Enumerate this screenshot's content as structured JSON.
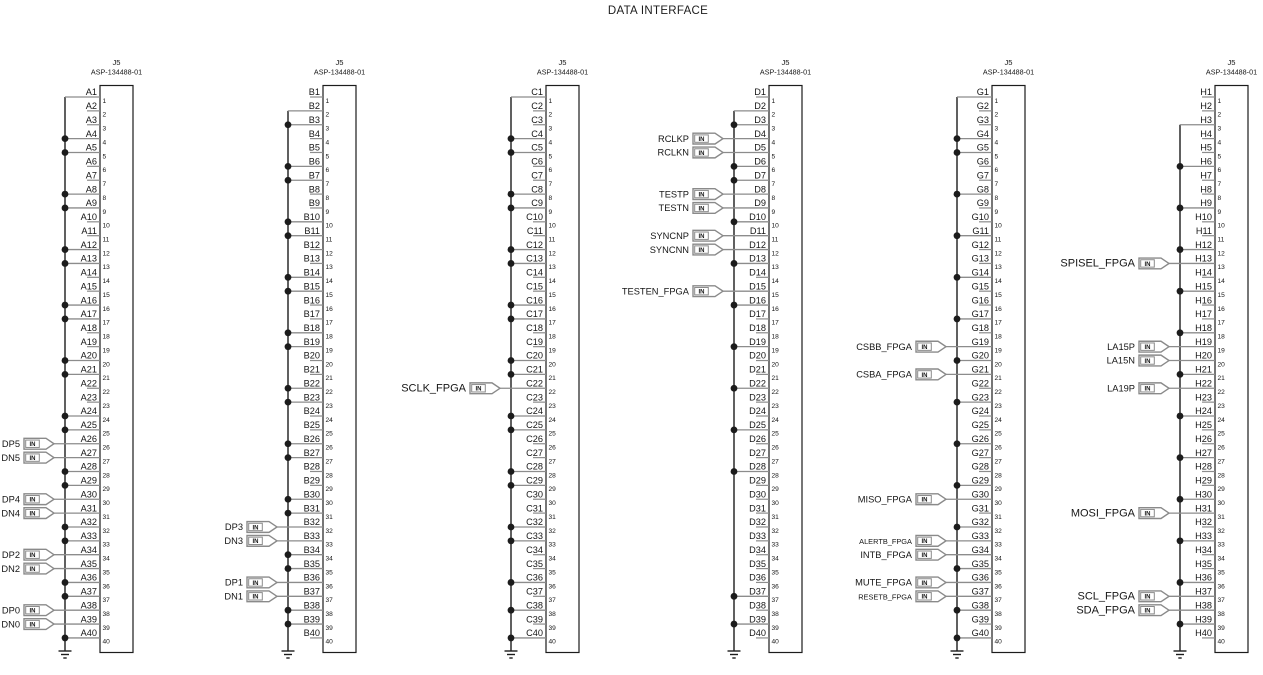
{
  "title": "DATA INTERFACE",
  "colors": {
    "wire": "#8c8c8c",
    "ink": "#1c1c1c",
    "bus": "#2b2b2b",
    "port_outline": "#8a8a8a"
  },
  "connector": {
    "ref": "J5",
    "part": "ASP-134488-01",
    "pins": 40
  },
  "columns": [
    {
      "prefix": "A",
      "bus_top_pin": 1,
      "grounded_pins": [
        4,
        5,
        8,
        9,
        12,
        13,
        16,
        17,
        20,
        21,
        24,
        25,
        28,
        29,
        32,
        33,
        36,
        37,
        40
      ],
      "signals": [
        {
          "pin": 26,
          "name": "DP5",
          "size": "m"
        },
        {
          "pin": 27,
          "name": "DN5",
          "size": "m"
        },
        {
          "pin": 30,
          "name": "DP4",
          "size": "m"
        },
        {
          "pin": 31,
          "name": "DN4",
          "size": "m"
        },
        {
          "pin": 34,
          "name": "DP2",
          "size": "m"
        },
        {
          "pin": 35,
          "name": "DN2",
          "size": "m"
        },
        {
          "pin": 38,
          "name": "DP0",
          "size": "m"
        },
        {
          "pin": 39,
          "name": "DN0",
          "size": "m"
        }
      ]
    },
    {
      "prefix": "B",
      "bus_top_pin": 2,
      "grounded_pins": [
        3,
        6,
        7,
        10,
        11,
        14,
        15,
        18,
        19,
        22,
        23,
        26,
        27,
        30,
        31,
        34,
        35,
        38,
        39
      ],
      "signals": [
        {
          "pin": 32,
          "name": "DP3",
          "size": "m"
        },
        {
          "pin": 33,
          "name": "DN3",
          "size": "m"
        },
        {
          "pin": 36,
          "name": "DP1",
          "size": "m"
        },
        {
          "pin": 37,
          "name": "DN1",
          "size": "m"
        }
      ]
    },
    {
      "prefix": "C",
      "bus_top_pin": 1,
      "grounded_pins": [
        4,
        5,
        8,
        9,
        12,
        13,
        16,
        17,
        20,
        21,
        24,
        25,
        28,
        29,
        32,
        33,
        36,
        38,
        40
      ],
      "signals": [
        {
          "pin": 22,
          "name": "SCLK_FPGA",
          "size": "l"
        }
      ]
    },
    {
      "prefix": "D",
      "bus_top_pin": 2,
      "grounded_pins": [
        3,
        6,
        7,
        10,
        13,
        16,
        19,
        22,
        25,
        28,
        37,
        39
      ],
      "signals": [
        {
          "pin": 4,
          "name": "RCLKP",
          "size": "m"
        },
        {
          "pin": 5,
          "name": "RCLKN",
          "size": "m"
        },
        {
          "pin": 8,
          "name": "TESTP",
          "size": "m"
        },
        {
          "pin": 9,
          "name": "TESTN",
          "size": "m"
        },
        {
          "pin": 11,
          "name": "SYNCNP",
          "size": "m"
        },
        {
          "pin": 12,
          "name": "SYNCNN",
          "size": "m"
        },
        {
          "pin": 15,
          "name": "TESTEN_FPGA",
          "size": "m"
        }
      ]
    },
    {
      "prefix": "G",
      "bus_top_pin": 1,
      "grounded_pins": [
        4,
        5,
        8,
        11,
        14,
        17,
        20,
        23,
        26,
        29,
        32,
        35,
        38,
        40
      ],
      "signals": [
        {
          "pin": 19,
          "name": "CSBB_FPGA",
          "size": "m"
        },
        {
          "pin": 21,
          "name": "CSBA_FPGA",
          "size": "m"
        },
        {
          "pin": 30,
          "name": "MISO_FPGA",
          "size": "m"
        },
        {
          "pin": 33,
          "name": "ALERTB_FPGA",
          "size": "s"
        },
        {
          "pin": 34,
          "name": "INTB_FPGA",
          "size": "m"
        },
        {
          "pin": 36,
          "name": "MUTE_FPGA",
          "size": "m"
        },
        {
          "pin": 37,
          "name": "RESETB_FPGA",
          "size": "s"
        }
      ]
    },
    {
      "prefix": "H",
      "bus_top_pin": 3,
      "grounded_pins": [
        6,
        9,
        12,
        15,
        18,
        21,
        24,
        27,
        30,
        33,
        36,
        39
      ],
      "signals": [
        {
          "pin": 13,
          "name": "SPISEL_FPGA",
          "size": "l"
        },
        {
          "pin": 19,
          "name": "LA15P",
          "size": "m"
        },
        {
          "pin": 20,
          "name": "LA15N",
          "size": "m"
        },
        {
          "pin": 22,
          "name": "LA19P",
          "size": "m"
        },
        {
          "pin": 31,
          "name": "MOSI_FPGA",
          "size": "l"
        },
        {
          "pin": 37,
          "name": "SCL_FPGA",
          "size": "l"
        },
        {
          "pin": 38,
          "name": "SDA_FPGA",
          "size": "l"
        }
      ]
    }
  ],
  "port_direction_label": "IN"
}
